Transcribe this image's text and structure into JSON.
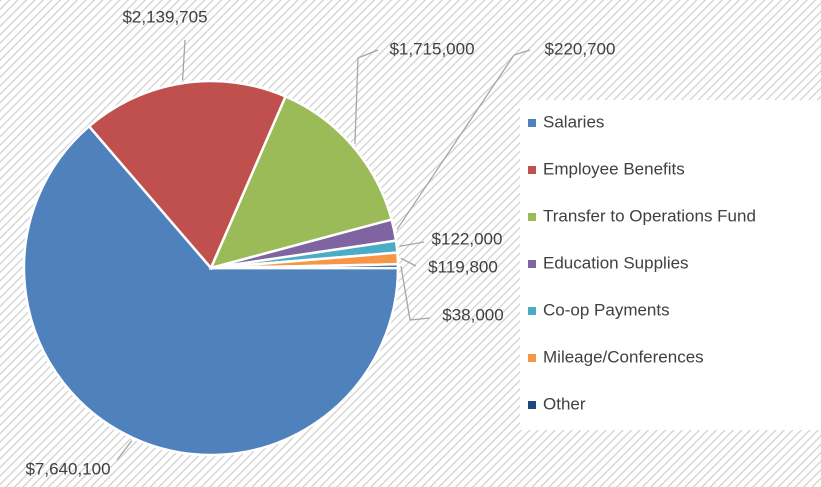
{
  "chart_data": {
    "type": "pie",
    "categories": [
      "Salaries",
      "Employee Benefits",
      "Transfer to Operations Fund",
      "Education Supplies",
      "Co-op Payments",
      "Mileage/Conferences",
      "Other"
    ],
    "values": [
      7640100,
      2139705,
      1715000,
      220700,
      122000,
      119800,
      38000
    ],
    "value_labels": [
      "$7,640,100",
      "$2,139,705",
      "$1,715,000",
      "$220,700",
      "$122,000",
      "$119,800",
      "$38,000"
    ],
    "colors": [
      "#4f81bd",
      "#c0504d",
      "#9bbb59",
      "#8064a2",
      "#4bacc6",
      "#f79646",
      "#1f497d"
    ],
    "legend": "right"
  }
}
